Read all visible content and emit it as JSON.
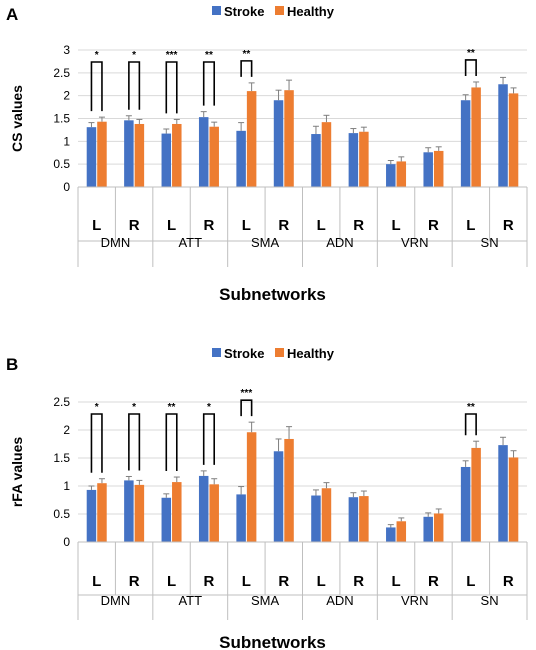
{
  "colors": {
    "stroke": "#4472c4",
    "healthy": "#ed7d31"
  },
  "legend": {
    "stroke_label": "Stroke",
    "healthy_label": "Healthy"
  },
  "chart_data": [
    {
      "panel": "A",
      "type": "bar",
      "ylabel": "CS values",
      "xlabel": "Subnetworks",
      "ylim": [
        0,
        3
      ],
      "yticks": [
        0,
        0.5,
        1,
        1.5,
        2,
        2.5,
        3
      ],
      "yticklabels": [
        "0",
        "0.5",
        "1",
        "1.5",
        "2",
        "2.5",
        "3"
      ],
      "grid": true,
      "legend_position": "top",
      "categories": [
        "L",
        "R",
        "L",
        "R",
        "L",
        "R",
        "L",
        "R",
        "L",
        "R",
        "L",
        "R"
      ],
      "groups": [
        "DMN",
        "ATT",
        "SMA",
        "ADN",
        "VRN",
        "SN"
      ],
      "series": [
        {
          "name": "Stroke",
          "values": [
            1.31,
            1.46,
            1.17,
            1.53,
            1.23,
            1.9,
            1.16,
            1.18,
            0.5,
            0.76,
            1.9,
            2.25
          ]
        },
        {
          "name": "Healthy",
          "values": [
            1.43,
            1.38,
            1.38,
            1.32,
            2.1,
            2.12,
            1.42,
            1.21,
            0.56,
            0.79,
            2.18,
            2.05
          ]
        }
      ],
      "errors": {
        "Stroke": [
          0.1,
          0.1,
          0.1,
          0.12,
          0.18,
          0.22,
          0.17,
          0.1,
          0.08,
          0.1,
          0.12,
          0.15
        ],
        "Healthy": [
          0.1,
          0.1,
          0.1,
          0.1,
          0.18,
          0.22,
          0.15,
          0.1,
          0.1,
          0.09,
          0.12,
          0.12
        ]
      },
      "significance": [
        {
          "index": 0,
          "label": "*"
        },
        {
          "index": 1,
          "label": "*"
        },
        {
          "index": 2,
          "label": "***"
        },
        {
          "index": 3,
          "label": "**"
        },
        {
          "index": 4,
          "label": "**"
        },
        {
          "index": 10,
          "label": "**"
        }
      ]
    },
    {
      "panel": "B",
      "type": "bar",
      "ylabel": "rFA values",
      "xlabel": "Subnetworks",
      "ylim": [
        0,
        2.5
      ],
      "yticks": [
        0,
        0.5,
        1,
        1.5,
        2,
        2.5
      ],
      "yticklabels": [
        "0",
        "0.5",
        "1",
        "1.5",
        "2",
        "2.5"
      ],
      "grid": true,
      "legend_position": "top",
      "categories": [
        "L",
        "R",
        "L",
        "R",
        "L",
        "R",
        "L",
        "R",
        "L",
        "R",
        "L",
        "R"
      ],
      "groups": [
        "DMN",
        "ATT",
        "SMA",
        "ADN",
        "VRN",
        "SN"
      ],
      "series": [
        {
          "name": "Stroke",
          "values": [
            0.93,
            1.1,
            0.79,
            1.18,
            0.85,
            1.62,
            0.83,
            0.8,
            0.26,
            0.45,
            1.34,
            1.73
          ]
        },
        {
          "name": "Healthy",
          "values": [
            1.05,
            1.02,
            1.07,
            1.03,
            1.96,
            1.84,
            0.96,
            0.82,
            0.37,
            0.51,
            1.68,
            1.51
          ]
        }
      ],
      "errors": {
        "Stroke": [
          0.07,
          0.07,
          0.07,
          0.09,
          0.14,
          0.22,
          0.1,
          0.08,
          0.05,
          0.07,
          0.11,
          0.14
        ],
        "Healthy": [
          0.08,
          0.08,
          0.09,
          0.1,
          0.18,
          0.22,
          0.1,
          0.09,
          0.06,
          0.08,
          0.12,
          0.12
        ]
      },
      "significance": [
        {
          "index": 0,
          "label": "*"
        },
        {
          "index": 1,
          "label": "*"
        },
        {
          "index": 2,
          "label": "**"
        },
        {
          "index": 3,
          "label": "*"
        },
        {
          "index": 4,
          "label": "***"
        },
        {
          "index": 10,
          "label": "**"
        }
      ]
    }
  ]
}
